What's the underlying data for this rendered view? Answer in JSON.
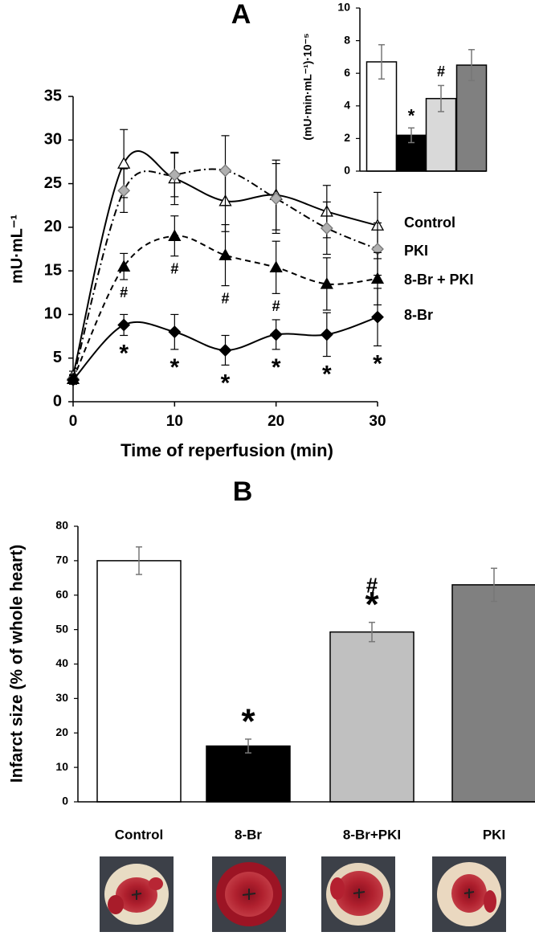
{
  "chart_data": [
    {
      "type": "line",
      "title": "A",
      "xlabel": "Time of reperfusion (min)",
      "ylabel": "mU·mL⁻¹",
      "x": [
        0,
        5,
        10,
        15,
        20,
        25,
        30
      ],
      "xlim": [
        0,
        30
      ],
      "xticks": [
        0,
        10,
        20,
        30
      ],
      "ylim": [
        0,
        35
      ],
      "yticks": [
        0,
        5,
        10,
        15,
        20,
        25,
        30,
        35
      ],
      "series": [
        {
          "name": "Control",
          "color": "#000000",
          "marker": "triangle",
          "marker_fill": "#ffffff",
          "dash": "solid",
          "values": [
            3,
            27.3,
            25.6,
            23,
            23.7,
            21.8,
            20.2
          ],
          "errors": [
            0.5,
            3.9,
            3,
            3.5,
            4,
            3,
            3.8
          ],
          "annotations": [
            null,
            null,
            null,
            null,
            null,
            null,
            null
          ]
        },
        {
          "name": "PKI",
          "color": "#000000",
          "marker": "diamond",
          "marker_fill": "#b0b0b0",
          "dash": "dashdot",
          "values": [
            2.6,
            24.2,
            26,
            26.5,
            23.3,
            19.9,
            17.5
          ],
          "errors": [
            0.5,
            2.5,
            2.5,
            4,
            4,
            3,
            3
          ],
          "annotations": [
            null,
            null,
            null,
            null,
            null,
            null,
            null
          ]
        },
        {
          "name": "8-Br + PKI",
          "color": "#000000",
          "marker": "triangle",
          "marker_fill": "#000000",
          "dash": "dashed",
          "values": [
            2.6,
            15.5,
            19,
            16.8,
            15.4,
            13.5,
            14.1
          ],
          "errors": [
            0.5,
            1.5,
            2.3,
            3.5,
            3,
            3,
            3
          ],
          "annotations": [
            null,
            "#",
            "#",
            "#",
            "#",
            null,
            null
          ]
        },
        {
          "name": "8-Br",
          "color": "#000000",
          "marker": "diamond",
          "marker_fill": "#000000",
          "dash": "solid",
          "values": [
            2.5,
            8.8,
            8,
            5.9,
            7.7,
            7.7,
            9.7
          ],
          "errors": [
            0.5,
            1.2,
            2,
            1.7,
            1.7,
            2.5,
            3.3
          ],
          "annotations": [
            null,
            "*",
            "*",
            "*",
            "*",
            "*",
            "*"
          ]
        }
      ]
    },
    {
      "type": "bar",
      "ylabel": "(mU·min·mL⁻¹)·10⁻⁵",
      "ylim": [
        0,
        10
      ],
      "yticks": [
        0,
        2,
        4,
        6,
        8,
        10
      ],
      "values": [
        6.7,
        2.2,
        4.45,
        6.5
      ],
      "errors": [
        1.05,
        0.45,
        0.8,
        0.95
      ],
      "colors": [
        "#ffffff",
        "#000000",
        "#d9d9d9",
        "#808080"
      ],
      "annotations": [
        null,
        [
          "*"
        ],
        [
          "#"
        ],
        null
      ]
    },
    {
      "type": "bar",
      "title": "B",
      "ylabel": "Infarct size (% of whole heart)",
      "ylim": [
        0,
        80
      ],
      "yticks": [
        0,
        10,
        20,
        30,
        40,
        50,
        60,
        70,
        80
      ],
      "categories": [
        "Control",
        "8-Br",
        "8-Br+PKI",
        "PKI"
      ],
      "values": [
        70,
        16.2,
        49.3,
        63
      ],
      "errors": [
        4,
        2,
        2.8,
        4.8
      ],
      "colors": [
        "#ffffff",
        "#000000",
        "#c0c0c0",
        "#808080"
      ],
      "annotations": [
        null,
        [
          "*"
        ],
        [
          "*",
          "#"
        ],
        null
      ]
    }
  ]
}
